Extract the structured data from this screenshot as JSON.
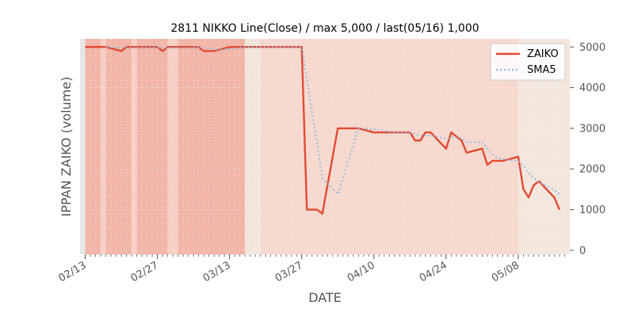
{
  "chart_data": {
    "type": "line",
    "title": "2811 NIKKO Line(Close) / max 5,000 / last(05/16) 1,000",
    "xlabel": "DATE",
    "ylabel": "IPPAN ZAIKO (volume)",
    "ylim": [
      -100,
      5200
    ],
    "y_ticks": [
      0,
      1000,
      2000,
      3000,
      4000,
      5000
    ],
    "y_tick_labels": [
      "0",
      "1000",
      "2000",
      "3000",
      "4000",
      "5000"
    ],
    "y_axis_side": "right",
    "x_range": [
      "2023-02-12",
      "2023-05-18"
    ],
    "x_ticks": [
      "2023-02-13",
      "2023-02-27",
      "2023-03-13",
      "2023-03-27",
      "2023-04-10",
      "2023-04-24",
      "2023-05-08"
    ],
    "x_tick_labels": [
      "02/13",
      "02/27",
      "03/13",
      "03/27",
      "04/10",
      "04/24",
      "05/08"
    ],
    "grid": true,
    "legend_position": "top-right",
    "series": [
      {
        "name": "ZAIKO",
        "color": "#E24A33",
        "points": [
          [
            "2023-02-13",
            5000
          ],
          [
            "2023-02-14",
            5000
          ],
          [
            "2023-02-15",
            5000
          ],
          [
            "2023-02-16",
            5000
          ],
          [
            "2023-02-17",
            5000
          ],
          [
            "2023-02-20",
            4900
          ],
          [
            "2023-02-21",
            5000
          ],
          [
            "2023-02-22",
            5000
          ],
          [
            "2023-02-23",
            5000
          ],
          [
            "2023-02-24",
            5000
          ],
          [
            "2023-02-27",
            5000
          ],
          [
            "2023-02-28",
            4900
          ],
          [
            "2023-03-01",
            5000
          ],
          [
            "2023-03-02",
            5000
          ],
          [
            "2023-03-03",
            5000
          ],
          [
            "2023-03-06",
            5000
          ],
          [
            "2023-03-07",
            5000
          ],
          [
            "2023-03-08",
            4900
          ],
          [
            "2023-03-09",
            4900
          ],
          [
            "2023-03-10",
            4900
          ],
          [
            "2023-03-13",
            5000
          ],
          [
            "2023-03-14",
            5000
          ],
          [
            "2023-03-15",
            5000
          ],
          [
            "2023-03-16",
            5000
          ],
          [
            "2023-03-17",
            5000
          ],
          [
            "2023-03-20",
            5000
          ],
          [
            "2023-03-22",
            5000
          ],
          [
            "2023-03-23",
            5000
          ],
          [
            "2023-03-24",
            5000
          ],
          [
            "2023-03-27",
            5000
          ],
          [
            "2023-03-28",
            1000
          ],
          [
            "2023-03-29",
            1000
          ],
          [
            "2023-03-30",
            1000
          ],
          [
            "2023-03-31",
            900
          ],
          [
            "2023-04-03",
            3000
          ],
          [
            "2023-04-04",
            3000
          ],
          [
            "2023-04-05",
            3000
          ],
          [
            "2023-04-06",
            3000
          ],
          [
            "2023-04-07",
            3000
          ],
          [
            "2023-04-10",
            2900
          ],
          [
            "2023-04-11",
            2900
          ],
          [
            "2023-04-12",
            2900
          ],
          [
            "2023-04-13",
            2900
          ],
          [
            "2023-04-14",
            2900
          ],
          [
            "2023-04-17",
            2900
          ],
          [
            "2023-04-18",
            2700
          ],
          [
            "2023-04-19",
            2700
          ],
          [
            "2023-04-20",
            2900
          ],
          [
            "2023-04-21",
            2900
          ],
          [
            "2023-04-24",
            2500
          ],
          [
            "2023-04-25",
            2900
          ],
          [
            "2023-04-26",
            2800
          ],
          [
            "2023-04-27",
            2700
          ],
          [
            "2023-04-28",
            2400
          ],
          [
            "2023-05-01",
            2500
          ],
          [
            "2023-05-02",
            2100
          ],
          [
            "2023-05-03",
            2200
          ],
          [
            "2023-05-04",
            2200
          ],
          [
            "2023-05-05",
            2200
          ],
          [
            "2023-05-08",
            2300
          ],
          [
            "2023-05-09",
            1500
          ],
          [
            "2023-05-10",
            1300
          ],
          [
            "2023-05-11",
            1600
          ],
          [
            "2023-05-12",
            1700
          ],
          [
            "2023-05-15",
            1300
          ],
          [
            "2023-05-16",
            1000
          ]
        ]
      },
      {
        "name": "SMA5",
        "color": "#8EBAE5",
        "points": [
          [
            "2023-02-17",
            5000
          ],
          [
            "2023-02-20",
            4980
          ],
          [
            "2023-02-21",
            4980
          ],
          [
            "2023-02-22",
            4980
          ],
          [
            "2023-02-23",
            4980
          ],
          [
            "2023-02-24",
            4980
          ],
          [
            "2023-02-27",
            5000
          ],
          [
            "2023-02-28",
            4980
          ],
          [
            "2023-03-01",
            4980
          ],
          [
            "2023-03-02",
            4980
          ],
          [
            "2023-03-03",
            4980
          ],
          [
            "2023-03-06",
            4980
          ],
          [
            "2023-03-07",
            5000
          ],
          [
            "2023-03-08",
            4980
          ],
          [
            "2023-03-09",
            4960
          ],
          [
            "2023-03-10",
            4940
          ],
          [
            "2023-03-13",
            4940
          ],
          [
            "2023-03-14",
            4960
          ],
          [
            "2023-03-15",
            4980
          ],
          [
            "2023-03-16",
            5000
          ],
          [
            "2023-03-17",
            5000
          ],
          [
            "2023-03-20",
            5000
          ],
          [
            "2023-03-22",
            5000
          ],
          [
            "2023-03-23",
            5000
          ],
          [
            "2023-03-24",
            5000
          ],
          [
            "2023-03-27",
            5000
          ],
          [
            "2023-03-28",
            4200
          ],
          [
            "2023-03-29",
            3400
          ],
          [
            "2023-03-30",
            2600
          ],
          [
            "2023-03-31",
            1780
          ],
          [
            "2023-04-03",
            1380
          ],
          [
            "2023-04-04",
            1780
          ],
          [
            "2023-04-05",
            2180
          ],
          [
            "2023-04-06",
            2580
          ],
          [
            "2023-04-07",
            3000
          ],
          [
            "2023-04-10",
            2980
          ],
          [
            "2023-04-11",
            2960
          ],
          [
            "2023-04-12",
            2940
          ],
          [
            "2023-04-13",
            2920
          ],
          [
            "2023-04-14",
            2900
          ],
          [
            "2023-04-17",
            2900
          ],
          [
            "2023-04-18",
            2860
          ],
          [
            "2023-04-19",
            2820
          ],
          [
            "2023-04-20",
            2820
          ],
          [
            "2023-04-21",
            2820
          ],
          [
            "2023-04-24",
            2740
          ],
          [
            "2023-04-25",
            2780
          ],
          [
            "2023-04-26",
            2760
          ],
          [
            "2023-04-27",
            2760
          ],
          [
            "2023-04-28",
            2660
          ],
          [
            "2023-05-01",
            2660
          ],
          [
            "2023-05-02",
            2500
          ],
          [
            "2023-05-03",
            2360
          ],
          [
            "2023-05-04",
            2280
          ],
          [
            "2023-05-05",
            2240
          ],
          [
            "2023-05-08",
            2200
          ],
          [
            "2023-05-09",
            2080
          ],
          [
            "2023-05-10",
            1900
          ],
          [
            "2023-05-11",
            1780
          ],
          [
            "2023-05-12",
            1680
          ],
          [
            "2023-05-15",
            1480
          ],
          [
            "2023-05-16",
            1380
          ]
        ]
      }
    ],
    "background_bands": [
      {
        "start": "2023-02-12",
        "end": "2023-02-13",
        "color": "#e6e6e6"
      },
      {
        "start": "2023-02-13",
        "end": "2023-02-16",
        "color": "#f2b5a7"
      },
      {
        "start": "2023-02-16",
        "end": "2023-02-17",
        "color": "#f6cfc5"
      },
      {
        "start": "2023-02-17",
        "end": "2023-02-22",
        "color": "#f2b5a7"
      },
      {
        "start": "2023-02-22",
        "end": "2023-02-23",
        "color": "#f6cfc5"
      },
      {
        "start": "2023-02-23",
        "end": "2023-03-01",
        "color": "#f2b5a7"
      },
      {
        "start": "2023-03-01",
        "end": "2023-03-03",
        "color": "#f6cfc5"
      },
      {
        "start": "2023-03-03",
        "end": "2023-03-16",
        "color": "#f2b5a7"
      },
      {
        "start": "2023-03-16",
        "end": "2023-03-19",
        "color": "#f2e6dc"
      },
      {
        "start": "2023-03-19",
        "end": "2023-05-08",
        "color": "#f6d8ce"
      },
      {
        "start": "2023-05-08",
        "end": "2023-05-18",
        "color": "#f3e6dc"
      }
    ]
  }
}
